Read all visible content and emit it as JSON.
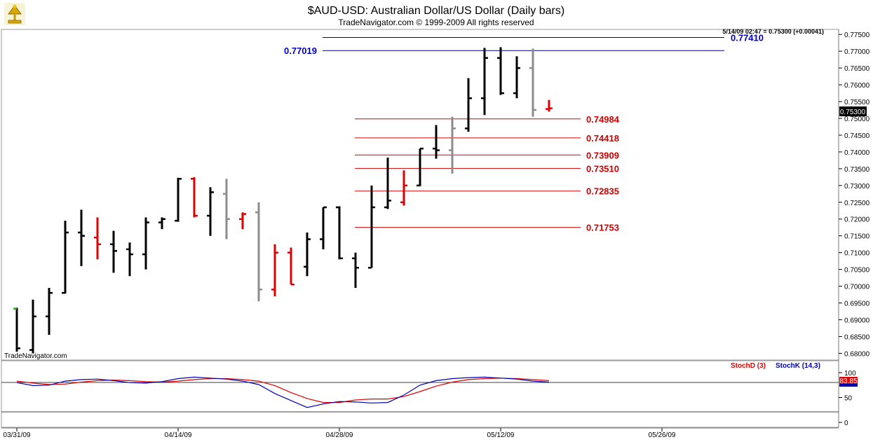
{
  "header": {
    "title": "$AUD-USD:  Australian Dollar/US Dollar  (Daily bars)",
    "subtitle": "TradeNavigator.com © 1999-2009 All rights reserved",
    "quote": "5/14/09 02:47 = 0.75300 (+0.00041)",
    "watermark": "TradeNavigator.com",
    "current_price_label": "0.75300",
    "logo_icon": "trophy-icon"
  },
  "colors": {
    "up_bar": "#000000",
    "down_bar": "#e00000",
    "neutral_bar": "#8c8c8c",
    "first_close": "#00c000",
    "fib_line": "#d00000",
    "level_line": "#00008b",
    "level_text": "#0000cc",
    "stoch_d": "#e00000",
    "stoch_k": "#0000b0"
  },
  "chart_data": [
    {
      "type": "ohlc",
      "title": "$AUD-USD:  Australian Dollar/US Dollar  (Daily bars)",
      "x_tick_labels": [
        "03/31/09",
        "04/14/09",
        "04/28/09",
        "05/12/09",
        "05/26/09"
      ],
      "x_tick_index": [
        0,
        10,
        20,
        30,
        40
      ],
      "ylim": [
        0.678,
        0.7765
      ],
      "y_ticks": [
        "0.77500",
        "0.77000",
        "0.76500",
        "0.76000",
        "0.75500",
        "0.75000",
        "0.74500",
        "0.74000",
        "0.73500",
        "0.73000",
        "0.72500",
        "0.72000",
        "0.71500",
        "0.71000",
        "0.70500",
        "0.70000",
        "0.69500",
        "0.69000",
        "0.68500",
        "0.68000"
      ],
      "bars": [
        {
          "i": 0,
          "o": 0.6933,
          "h": 0.6936,
          "l": 0.6805,
          "c": 0.6815,
          "col": "up_bar"
        },
        {
          "i": 1,
          "o": 0.681,
          "h": 0.696,
          "l": 0.68,
          "c": 0.691,
          "col": "up_bar"
        },
        {
          "i": 2,
          "o": 0.691,
          "h": 0.6995,
          "l": 0.6855,
          "c": 0.698,
          "col": "up_bar"
        },
        {
          "i": 3,
          "o": 0.698,
          "h": 0.7195,
          "l": 0.6978,
          "c": 0.716,
          "col": "up_bar"
        },
        {
          "i": 4,
          "o": 0.716,
          "h": 0.7228,
          "l": 0.706,
          "c": 0.715,
          "col": "up_bar"
        },
        {
          "i": 5,
          "o": 0.7145,
          "h": 0.7205,
          "l": 0.708,
          "c": 0.7125,
          "col": "down_bar"
        },
        {
          "i": 6,
          "o": 0.7125,
          "h": 0.7165,
          "l": 0.704,
          "c": 0.7105,
          "col": "up_bar"
        },
        {
          "i": 7,
          "o": 0.711,
          "h": 0.713,
          "l": 0.703,
          "c": 0.7095,
          "col": "up_bar"
        },
        {
          "i": 8,
          "o": 0.7095,
          "h": 0.7205,
          "l": 0.705,
          "c": 0.719,
          "col": "up_bar"
        },
        {
          "i": 9,
          "o": 0.719,
          "h": 0.7205,
          "l": 0.717,
          "c": 0.72,
          "col": "up_bar"
        },
        {
          "i": 10,
          "o": 0.7195,
          "h": 0.7323,
          "l": 0.7192,
          "c": 0.732,
          "col": "up_bar"
        },
        {
          "i": 11,
          "o": 0.732,
          "h": 0.7325,
          "l": 0.7205,
          "c": 0.721,
          "col": "down_bar"
        },
        {
          "i": 12,
          "o": 0.721,
          "h": 0.7295,
          "l": 0.715,
          "c": 0.728,
          "col": "up_bar"
        },
        {
          "i": 13,
          "o": 0.7275,
          "h": 0.732,
          "l": 0.714,
          "c": 0.72,
          "col": "neutral_bar"
        },
        {
          "i": 14,
          "o": 0.72,
          "h": 0.722,
          "l": 0.717,
          "c": 0.7215,
          "col": "down_bar"
        },
        {
          "i": 15,
          "o": 0.722,
          "h": 0.725,
          "l": 0.6955,
          "c": 0.699,
          "col": "neutral_bar"
        },
        {
          "i": 16,
          "o": 0.699,
          "h": 0.7125,
          "l": 0.697,
          "c": 0.71,
          "col": "down_bar"
        },
        {
          "i": 17,
          "o": 0.71,
          "h": 0.7115,
          "l": 0.7005,
          "c": 0.7005,
          "col": "down_bar"
        },
        {
          "i": 18,
          "o": 0.7058,
          "h": 0.716,
          "l": 0.703,
          "c": 0.714,
          "col": "up_bar"
        },
        {
          "i": 19,
          "o": 0.714,
          "h": 0.7235,
          "l": 0.711,
          "c": 0.7235,
          "col": "up_bar"
        },
        {
          "i": 20,
          "o": 0.7235,
          "h": 0.7238,
          "l": 0.708,
          "c": 0.7083,
          "col": "up_bar"
        },
        {
          "i": 21,
          "o": 0.7083,
          "h": 0.71,
          "l": 0.6995,
          "c": 0.7055,
          "col": "up_bar"
        },
        {
          "i": 22,
          "o": 0.7055,
          "h": 0.73,
          "l": 0.7055,
          "c": 0.7235,
          "col": "up_bar"
        },
        {
          "i": 23,
          "o": 0.7235,
          "h": 0.7383,
          "l": 0.723,
          "c": 0.7255,
          "col": "up_bar"
        },
        {
          "i": 24,
          "o": 0.725,
          "h": 0.7345,
          "l": 0.724,
          "c": 0.73,
          "col": "down_bar"
        },
        {
          "i": 25,
          "o": 0.73,
          "h": 0.741,
          "l": 0.7298,
          "c": 0.741,
          "col": "up_bar"
        },
        {
          "i": 26,
          "o": 0.741,
          "h": 0.748,
          "l": 0.738,
          "c": 0.7405,
          "col": "up_bar"
        },
        {
          "i": 27,
          "o": 0.7405,
          "h": 0.7505,
          "l": 0.7335,
          "c": 0.747,
          "col": "neutral_bar"
        },
        {
          "i": 28,
          "o": 0.747,
          "h": 0.762,
          "l": 0.746,
          "c": 0.756,
          "col": "up_bar"
        },
        {
          "i": 29,
          "o": 0.756,
          "h": 0.771,
          "l": 0.751,
          "c": 0.768,
          "col": "up_bar"
        },
        {
          "i": 30,
          "o": 0.768,
          "h": 0.7712,
          "l": 0.757,
          "c": 0.7575,
          "col": "up_bar"
        },
        {
          "i": 31,
          "o": 0.7575,
          "h": 0.7685,
          "l": 0.756,
          "c": 0.765,
          "col": "up_bar"
        },
        {
          "i": 32,
          "o": 0.765,
          "h": 0.7708,
          "l": 0.7505,
          "c": 0.7525,
          "col": "neutral_bar"
        },
        {
          "i": 33,
          "o": 0.7528,
          "h": 0.7555,
          "l": 0.752,
          "c": 0.753,
          "col": "down_bar"
        }
      ],
      "fib_levels": [
        "0.74984",
        "0.74418",
        "0.73909",
        "0.73510",
        "0.72835",
        "0.71753"
      ],
      "horizontal_levels": [
        {
          "label": "0.77410",
          "value": 0.7741
        },
        {
          "label": "0.77019",
          "value": 0.77019
        }
      ]
    },
    {
      "type": "line",
      "legend": [
        "StochD (3)",
        "StochK (14,3)"
      ],
      "ylim": [
        0,
        100
      ],
      "y_ticks": [
        "100",
        "50",
        "0"
      ],
      "current_value_label": "83.85",
      "series": [
        {
          "name": "StochD (3)",
          "values": [
            83,
            79,
            76,
            77,
            81,
            84,
            85,
            84,
            82,
            81,
            83,
            86,
            88,
            88,
            86,
            83,
            74,
            60,
            48,
            40,
            40,
            45,
            47,
            47,
            52,
            62,
            73,
            81,
            86,
            88,
            89,
            88,
            86,
            84
          ]
        },
        {
          "name": "StochK (14,3)",
          "values": [
            80,
            74,
            75,
            83,
            86,
            87,
            84,
            80,
            79,
            82,
            88,
            91,
            89,
            87,
            83,
            76,
            58,
            44,
            30,
            37,
            42,
            41,
            39,
            40,
            55,
            75,
            84,
            88,
            90,
            91,
            89,
            87,
            83,
            81
          ]
        }
      ]
    }
  ]
}
